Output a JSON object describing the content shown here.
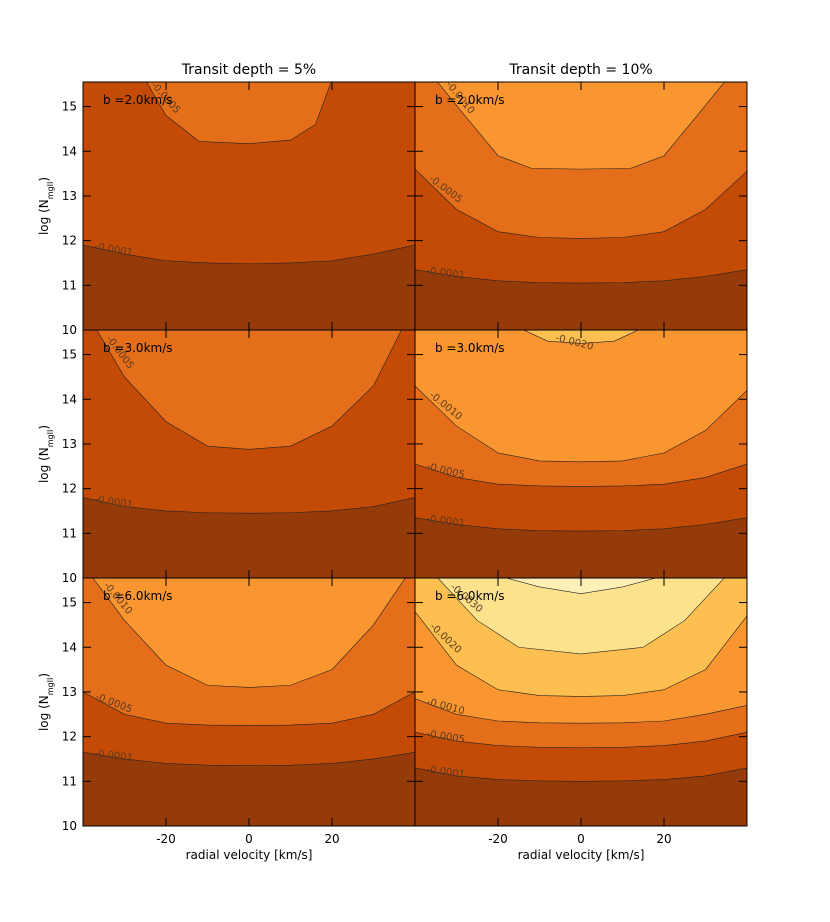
{
  "chart_data": [
    {
      "type": "contour",
      "title": "Transit depth = 5%",
      "annotation": "b =2.0km/s",
      "ylabel_parts": [
        "log (N",
        "mgII",
        ")"
      ],
      "xlim": [
        -40,
        40
      ],
      "ylim": [
        10,
        15.55
      ],
      "xticks": [
        -20,
        0,
        20
      ],
      "yticks": [
        10,
        11,
        12,
        13,
        14,
        15
      ],
      "base_color": "#953b0a",
      "contours": [
        {
          "level": -0.0001,
          "color": "#c44b05",
          "x": [
            -40,
            -30,
            -20,
            -10,
            0,
            10,
            20,
            30,
            40
          ],
          "y": [
            11.9,
            11.7,
            11.55,
            11.5,
            11.48,
            11.5,
            11.55,
            11.7,
            11.9
          ]
        },
        {
          "level": -0.0005,
          "color": "#e56e1a",
          "x": [
            -25,
            -20,
            -12,
            0,
            10,
            16,
            20
          ],
          "y": [
            15.6,
            14.8,
            14.22,
            14.17,
            14.25,
            14.6,
            15.6
          ]
        }
      ]
    },
    {
      "type": "contour",
      "title": "Transit depth = 10%",
      "annotation": "b =2.0km/s",
      "xlim": [
        -40,
        40
      ],
      "ylim": [
        10,
        15.55
      ],
      "xticks": [
        -20,
        0,
        20
      ],
      "yticks": [
        10,
        11,
        12,
        13,
        14,
        15
      ],
      "base_color": "#953b0a",
      "contours": [
        {
          "level": -0.0001,
          "color": "#c44b05",
          "x": [
            -40,
            -30,
            -20,
            -10,
            0,
            10,
            20,
            30,
            40
          ],
          "y": [
            11.35,
            11.2,
            11.1,
            11.06,
            11.05,
            11.06,
            11.1,
            11.2,
            11.35
          ]
        },
        {
          "level": -0.0005,
          "color": "#e56e1a",
          "x": [
            -40,
            -30,
            -20,
            -10,
            0,
            10,
            20,
            30,
            40
          ],
          "y": [
            13.6,
            12.7,
            12.2,
            12.07,
            12.05,
            12.07,
            12.2,
            12.7,
            13.55
          ]
        },
        {
          "level": {
            "value": -0.001,
            "label": "-0.0010"
          },
          "color": "#f9962f",
          "x": [
            -35,
            -28,
            -20,
            -12,
            0,
            12,
            20,
            28,
            35
          ],
          "y": [
            15.6,
            14.8,
            13.9,
            13.62,
            13.6,
            13.62,
            13.9,
            14.8,
            15.6
          ]
        }
      ]
    },
    {
      "type": "contour",
      "annotation": "b =3.0km/s",
      "ylabel_parts": [
        "log (N",
        "mgII",
        ")"
      ],
      "xlim": [
        -40,
        40
      ],
      "ylim": [
        10,
        15.55
      ],
      "xticks": [
        -20,
        0,
        20
      ],
      "yticks": [
        10,
        11,
        12,
        13,
        14,
        15
      ],
      "base_color": "#953b0a",
      "contours": [
        {
          "level": -0.0001,
          "color": "#c44b05",
          "x": [
            -40,
            -30,
            -20,
            -10,
            0,
            10,
            20,
            30,
            40
          ],
          "y": [
            11.8,
            11.6,
            11.5,
            11.46,
            11.45,
            11.46,
            11.5,
            11.6,
            11.8
          ]
        },
        {
          "level": -0.0005,
          "color": "#e56e1a",
          "x": [
            -37,
            -30,
            -20,
            -10,
            0,
            10,
            20,
            30,
            37
          ],
          "y": [
            15.6,
            14.5,
            13.5,
            12.95,
            12.88,
            12.95,
            13.4,
            14.3,
            15.6
          ]
        }
      ]
    },
    {
      "type": "contour",
      "annotation": "b =3.0km/s",
      "xlim": [
        -40,
        40
      ],
      "ylim": [
        10,
        15.55
      ],
      "xticks": [
        -20,
        0,
        20
      ],
      "yticks": [
        10,
        11,
        12,
        13,
        14,
        15
      ],
      "base_color": "#953b0a",
      "contours": [
        {
          "level": -0.0001,
          "color": "#c44b05",
          "x": [
            -40,
            -30,
            -20,
            -10,
            0,
            10,
            20,
            30,
            40
          ],
          "y": [
            11.35,
            11.2,
            11.1,
            11.06,
            11.05,
            11.06,
            11.1,
            11.2,
            11.35
          ]
        },
        {
          "level": -0.0005,
          "color": "#e56e1a",
          "x": [
            -40,
            -30,
            -20,
            -10,
            0,
            10,
            20,
            30,
            40
          ],
          "y": [
            12.55,
            12.25,
            12.1,
            12.06,
            12.05,
            12.06,
            12.1,
            12.25,
            12.55
          ]
        },
        {
          "level": {
            "value": -0.001,
            "label": "-0.0010"
          },
          "color": "#f9962f",
          "x": [
            -40,
            -30,
            -20,
            -10,
            0,
            10,
            20,
            30,
            40
          ],
          "y": [
            14.3,
            13.4,
            12.8,
            12.62,
            12.6,
            12.62,
            12.8,
            13.3,
            14.2
          ]
        },
        {
          "level": {
            "value": -0.002,
            "label": "-0.0020"
          },
          "color": "#fdc050",
          "x": [
            -15,
            -8,
            0,
            8,
            15
          ],
          "y": [
            15.6,
            15.3,
            15.25,
            15.3,
            15.6
          ]
        }
      ]
    },
    {
      "type": "contour",
      "annotation": "b =6.0km/s",
      "ylabel_parts": [
        "log (N",
        "mgII",
        ")"
      ],
      "xlabel": "radial velocity [km/s]",
      "xlim": [
        -40,
        40
      ],
      "ylim": [
        10,
        15.55
      ],
      "xticks": [
        -20,
        0,
        20
      ],
      "yticks": [
        10,
        11,
        12,
        13,
        14,
        15
      ],
      "base_color": "#953b0a",
      "contours": [
        {
          "level": -0.0001,
          "color": "#c44b05",
          "x": [
            -40,
            -30,
            -20,
            -10,
            0,
            10,
            20,
            30,
            40
          ],
          "y": [
            11.65,
            11.5,
            11.4,
            11.36,
            11.35,
            11.36,
            11.4,
            11.5,
            11.65
          ]
        },
        {
          "level": -0.0005,
          "color": "#e56e1a",
          "x": [
            -40,
            -30,
            -20,
            -10,
            0,
            10,
            20,
            30,
            40
          ],
          "y": [
            13.0,
            12.5,
            12.3,
            12.26,
            12.25,
            12.26,
            12.3,
            12.5,
            13.0
          ]
        },
        {
          "level": {
            "value": -0.001,
            "label": "-0.0010"
          },
          "color": "#f9962f",
          "x": [
            -38,
            -30,
            -20,
            -10,
            0,
            10,
            20,
            30,
            38
          ],
          "y": [
            15.6,
            14.6,
            13.6,
            13.15,
            13.1,
            13.15,
            13.5,
            14.5,
            15.6
          ]
        }
      ]
    },
    {
      "type": "contour",
      "annotation": "b =6.0km/s",
      "xlabel": "radial velocity [km/s]",
      "xlim": [
        -40,
        40
      ],
      "ylim": [
        10,
        15.55
      ],
      "xticks": [
        -20,
        0,
        20
      ],
      "yticks": [
        10,
        11,
        12,
        13,
        14,
        15
      ],
      "base_color": "#953b0a",
      "contours": [
        {
          "level": -0.0001,
          "color": "#c44b05",
          "x": [
            -40,
            -30,
            -20,
            -10,
            0,
            10,
            20,
            30,
            40
          ],
          "y": [
            11.3,
            11.12,
            11.04,
            11.01,
            11.0,
            11.01,
            11.04,
            11.12,
            11.3
          ]
        },
        {
          "level": -0.0005,
          "color": "#e56e1a",
          "x": [
            -40,
            -30,
            -20,
            -10,
            0,
            10,
            20,
            30,
            40
          ],
          "y": [
            12.1,
            11.9,
            11.8,
            11.76,
            11.75,
            11.76,
            11.8,
            11.9,
            12.1
          ]
        },
        {
          "level": {
            "value": -0.001,
            "label": "-0.0010"
          },
          "color": "#f9962f",
          "x": [
            -40,
            -30,
            -20,
            -10,
            0,
            10,
            20,
            30,
            40
          ],
          "y": [
            12.85,
            12.5,
            12.35,
            12.31,
            12.3,
            12.31,
            12.35,
            12.5,
            12.7
          ]
        },
        {
          "level": {
            "value": -0.002,
            "label": "-0.0020"
          },
          "color": "#fdc050",
          "x": [
            -40,
            -30,
            -20,
            -10,
            0,
            10,
            20,
            30,
            40
          ],
          "y": [
            14.8,
            13.6,
            13.05,
            12.92,
            12.9,
            12.92,
            13.05,
            13.5,
            14.7
          ]
        },
        {
          "level": {
            "value": -0.003,
            "label": "-0.0030"
          },
          "color": "#fde28e",
          "x": [
            -35,
            -25,
            -15,
            0,
            15,
            25,
            35
          ],
          "y": [
            15.6,
            14.6,
            14.0,
            13.85,
            14.0,
            14.6,
            15.6
          ]
        },
        {
          "level": null,
          "color": "#fff0b8",
          "x": [
            -20,
            -10,
            0,
            10,
            20
          ],
          "y": [
            15.6,
            15.35,
            15.2,
            15.35,
            15.6
          ]
        }
      ]
    }
  ]
}
